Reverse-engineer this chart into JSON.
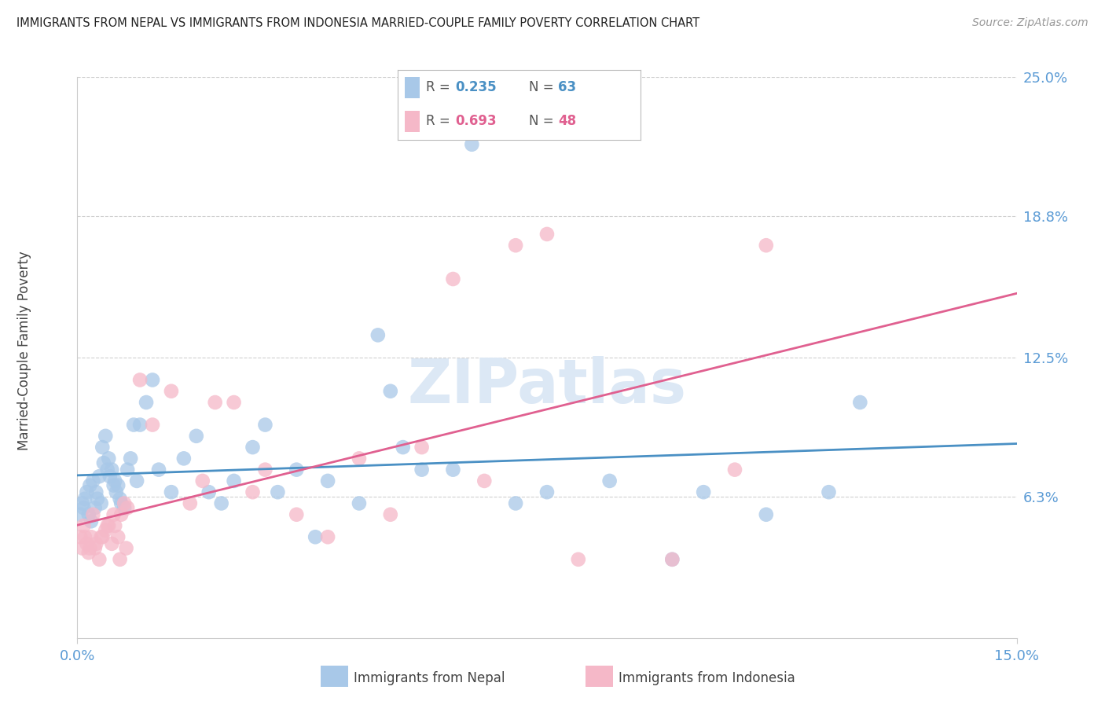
{
  "title": "IMMIGRANTS FROM NEPAL VS IMMIGRANTS FROM INDONESIA MARRIED-COUPLE FAMILY POVERTY CORRELATION CHART",
  "source": "Source: ZipAtlas.com",
  "ylabel": "Married-Couple Family Poverty",
  "x_min": 0.0,
  "x_max": 15.0,
  "y_min": 0.0,
  "y_max": 25.0,
  "ytick_vals": [
    6.3,
    12.5,
    18.8,
    25.0
  ],
  "ytick_labels": [
    "6.3%",
    "12.5%",
    "18.8%",
    "25.0%"
  ],
  "xtick_vals": [
    0.0,
    15.0
  ],
  "xtick_labels": [
    "0.0%",
    "15.0%"
  ],
  "nepal_R": 0.235,
  "nepal_N": 63,
  "indonesia_R": 0.693,
  "indonesia_N": 48,
  "nepal_color": "#a8c8e8",
  "indonesia_color": "#f5b8c8",
  "nepal_line_color": "#4a90c4",
  "indonesia_line_color": "#e06090",
  "watermark": "ZIPatlas",
  "watermark_color": "#dce8f5",
  "background_color": "#ffffff",
  "grid_color": "#d0d0d0",
  "axis_color": "#cccccc",
  "tick_label_color": "#5b9bd5",
  "nepal_x": [
    0.05,
    0.08,
    0.1,
    0.12,
    0.15,
    0.18,
    0.2,
    0.22,
    0.25,
    0.28,
    0.3,
    0.32,
    0.35,
    0.38,
    0.4,
    0.42,
    0.45,
    0.48,
    0.5,
    0.52,
    0.55,
    0.58,
    0.6,
    0.62,
    0.65,
    0.68,
    0.7,
    0.75,
    0.8,
    0.85,
    0.9,
    0.95,
    1.0,
    1.1,
    1.2,
    1.3,
    1.5,
    1.7,
    1.9,
    2.1,
    2.3,
    2.5,
    2.8,
    3.0,
    3.2,
    3.5,
    3.8,
    4.0,
    4.5,
    4.8,
    5.0,
    5.2,
    5.5,
    6.0,
    6.3,
    7.0,
    7.5,
    8.5,
    9.5,
    10.0,
    11.0,
    12.0,
    12.5
  ],
  "nepal_y": [
    5.5,
    6.0,
    5.8,
    6.2,
    6.5,
    5.5,
    6.8,
    5.2,
    7.0,
    5.8,
    6.5,
    6.2,
    7.2,
    6.0,
    8.5,
    7.8,
    9.0,
    7.5,
    8.0,
    7.2,
    7.5,
    6.8,
    7.0,
    6.5,
    6.8,
    6.2,
    6.0,
    5.8,
    7.5,
    8.0,
    9.5,
    7.0,
    9.5,
    10.5,
    11.5,
    7.5,
    6.5,
    8.0,
    9.0,
    6.5,
    6.0,
    7.0,
    8.5,
    9.5,
    6.5,
    7.5,
    4.5,
    7.0,
    6.0,
    13.5,
    11.0,
    8.5,
    7.5,
    7.5,
    22.0,
    6.0,
    6.5,
    7.0,
    3.5,
    6.5,
    5.5,
    6.5,
    10.5
  ],
  "indonesia_x": [
    0.05,
    0.08,
    0.1,
    0.12,
    0.15,
    0.18,
    0.2,
    0.22,
    0.25,
    0.28,
    0.3,
    0.35,
    0.4,
    0.45,
    0.5,
    0.55,
    0.6,
    0.65,
    0.7,
    0.75,
    0.8,
    1.0,
    1.2,
    1.5,
    1.8,
    2.0,
    2.2,
    2.5,
    2.8,
    3.0,
    3.5,
    4.0,
    4.5,
    5.0,
    5.5,
    6.0,
    6.5,
    7.0,
    7.5,
    8.0,
    9.5,
    10.5,
    11.0,
    0.38,
    0.48,
    0.58,
    0.68,
    0.78
  ],
  "indonesia_y": [
    4.5,
    4.0,
    5.0,
    4.5,
    4.2,
    3.8,
    4.0,
    4.5,
    5.5,
    4.0,
    4.2,
    3.5,
    4.5,
    4.8,
    5.0,
    4.2,
    5.0,
    4.5,
    5.5,
    6.0,
    5.8,
    11.5,
    9.5,
    11.0,
    6.0,
    7.0,
    10.5,
    10.5,
    6.5,
    7.5,
    5.5,
    4.5,
    8.0,
    5.5,
    8.5,
    16.0,
    7.0,
    17.5,
    18.0,
    3.5,
    3.5,
    7.5,
    17.5,
    4.5,
    5.0,
    5.5,
    3.5,
    4.0
  ]
}
